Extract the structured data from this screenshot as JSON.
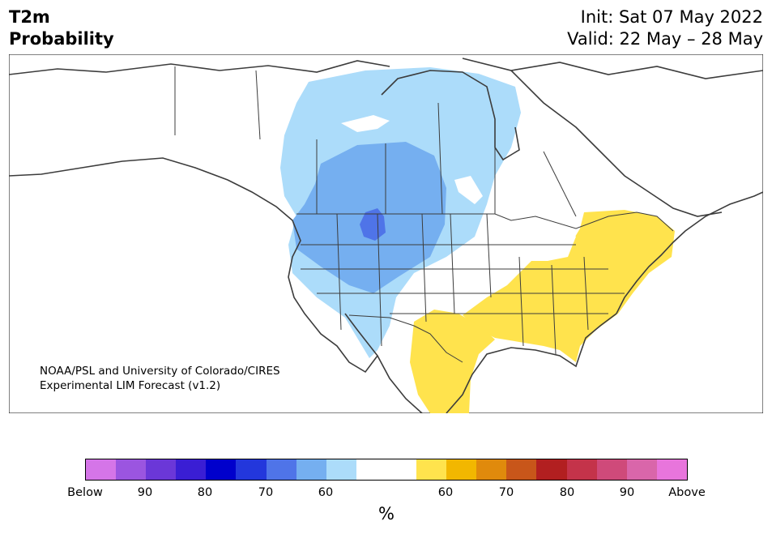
{
  "title": {
    "left_line1": "T2m",
    "left_line2": "Probability",
    "init": "Init: Sat 07 May 2022",
    "valid": "Valid: 22 May – 28 May"
  },
  "credit": {
    "line1": "NOAA/PSL and University of Colorado/CIRES",
    "line2": "Experimental LIM Forecast (v1.2)"
  },
  "colorbar": {
    "colors": [
      "#d575e8",
      "#9b55e0",
      "#6b37d8",
      "#3a1ed4",
      "#0000cc",
      "#2337dc",
      "#4f74e8",
      "#75aff0",
      "#acdcfa",
      "#ffffff",
      "#ffffff",
      "#ffe34d",
      "#f2b700",
      "#e08a0c",
      "#c8561a",
      "#b21f20",
      "#c4334a",
      "#cf4a7a",
      "#d966aa",
      "#e875dc"
    ],
    "ticks": [
      "Below",
      "90",
      "80",
      "70",
      "60",
      "60",
      "70",
      "80",
      "90",
      "Above"
    ],
    "unit": "%"
  },
  "map": {
    "land_color": "#ffffff",
    "border_color": "#3c3c3c",
    "cold_light": "#acdcfa",
    "cold_mid": "#75aff0",
    "cold_dark": "#4f74e8",
    "warm": "#ffe34d"
  }
}
